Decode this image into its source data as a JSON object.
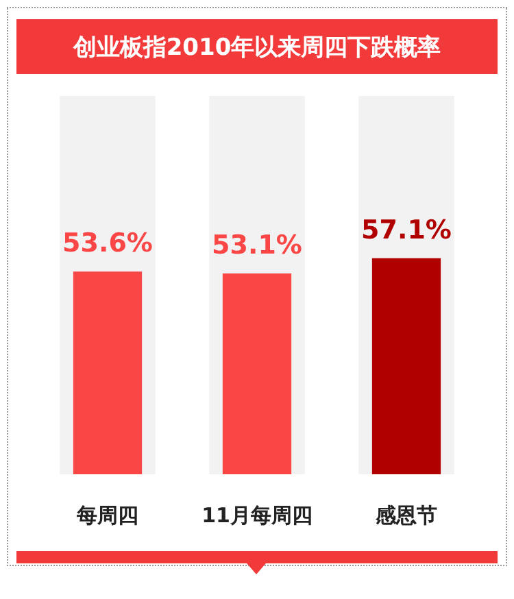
{
  "chart_data": {
    "type": "bar",
    "title": "创业板指2010年以来周四下跌概率",
    "categories": [
      "每周四",
      "11月每周四",
      "感恩节"
    ],
    "series": [
      {
        "color": "#f2f2f2",
        "values": [
          100,
          100,
          100
        ]
      },
      {
        "colors": [
          "#fb4646",
          "#fb4646",
          "#b00000"
        ],
        "values": [
          53.6,
          53.1,
          57.1
        ],
        "value_labels": [
          "53.6%",
          "53.1%",
          "57.1%"
        ]
      }
    ],
    "ylim": [
      0,
      100
    ],
    "tick_labels": "x"
  }
}
